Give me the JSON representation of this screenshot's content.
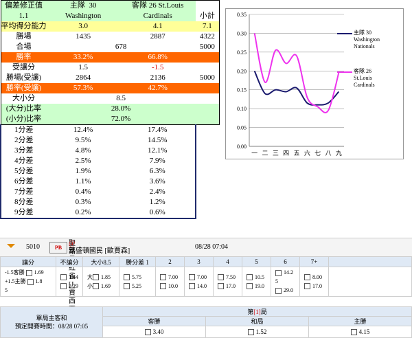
{
  "stats": {
    "header": {
      "title": "偏差修正值",
      "home_label": "主隊",
      "home_num": "30",
      "away_label": "客隊",
      "away_num": "26 St.Louis",
      "home_team": "Washington",
      "away_team": "Cardinals",
      "correction": "1.1",
      "subtotal_label": "小計"
    },
    "avg_ability": {
      "label": "平均得分能力",
      "home": "3.0",
      "away": "4.1",
      "total": "7.1"
    },
    "wins": {
      "label": "勝場",
      "home": "1435",
      "away": "2887",
      "total": "4322"
    },
    "games": {
      "label": "合場",
      "home": "678",
      "total": "5000"
    },
    "win_rate": {
      "label": "勝率",
      "home": "33.2%",
      "away": "66.8%"
    },
    "handicap": {
      "label": "受讓分",
      "home": "1.5",
      "away": "-1.5"
    },
    "wins_hc": {
      "label": "勝場(受讓)",
      "home": "2864",
      "away": "2136",
      "total": "5000"
    },
    "win_rate_hc": {
      "label": "勝率(受讓)",
      "home": "57.3%",
      "away": "42.7%"
    },
    "ou": {
      "label": "大小分",
      "value": "8.5"
    },
    "over_rate": {
      "label": "(大分)比率",
      "value": "28.0%"
    },
    "under_rate": {
      "label": "(小分)比率",
      "value": "72.0%"
    },
    "margins": [
      {
        "label": "1分差",
        "home": "12.4%",
        "away": "17.4%"
      },
      {
        "label": "2分差",
        "home": "9.5%",
        "away": "14.5%"
      },
      {
        "label": "3分差",
        "home": "4.8%",
        "away": "12.1%"
      },
      {
        "label": "4分差",
        "home": "2.5%",
        "away": "7.9%"
      },
      {
        "label": "5分差",
        "home": "1.9%",
        "away": "6.3%"
      },
      {
        "label": "6分差",
        "home": "1.1%",
        "away": "3.6%"
      },
      {
        "label": "7分差",
        "home": "0.4%",
        "away": "2.4%"
      },
      {
        "label": "8分差",
        "home": "0.3%",
        "away": "1.2%"
      },
      {
        "label": "9分差",
        "home": "0.2%",
        "away": "0.6%"
      }
    ]
  },
  "chart_data": {
    "type": "line",
    "categories": [
      "一",
      "二",
      "三",
      "四",
      "五",
      "六",
      "七",
      "八",
      "九"
    ],
    "ylim": [
      0,
      0.35
    ],
    "yticks": [
      "0.00",
      "0.05",
      "0.10",
      "0.15",
      "0.20",
      "0.25",
      "0.30",
      "0.35"
    ],
    "grid": true,
    "legend_position": "right",
    "series": [
      {
        "name_line1": "主隊  30",
        "name_line2": "Washington",
        "name_line3": "Nationals",
        "color": "#1a1a6e",
        "values": [
          0.2,
          0.14,
          0.15,
          0.145,
          0.155,
          0.115,
          0.11,
          0.115,
          0.145
        ]
      },
      {
        "name_line1": "客隊  26",
        "name_line2": "St.Louis",
        "name_line3": "Cardinals",
        "color": "#ee33ee",
        "values": [
          0.3,
          0.17,
          0.255,
          0.22,
          0.24,
          0.13,
          0.105,
          0.095,
          0.195
        ]
      }
    ]
  },
  "match": {
    "number": "5010",
    "logo_text": "PB",
    "home_line": "聖路易紅雀 [J.賈西亞]",
    "away_line": "華盛頓國民 [歐賈森]",
    "at_symbol": "@",
    "datetime": "08/28 07:04"
  },
  "bets": {
    "headers": [
      "讓分",
      "不讓分",
      "大小8.5",
      "勝分差 1",
      "2",
      "3",
      "4",
      "5",
      "6",
      "7+"
    ],
    "spread": [
      {
        "label": "-1.5客勝",
        "odds": "1.69"
      },
      {
        "label": "+1.5主勝",
        "odds": "1.8"
      },
      {
        "extra": "5"
      }
    ],
    "moneyline": [
      "1.44",
      "2.29"
    ],
    "totals": [
      {
        "label": "大",
        "odds": "1.85"
      },
      {
        "label": "小",
        "odds": "1.69"
      }
    ],
    "margin1": [
      "5.75",
      "5.25"
    ],
    "margin2": [
      "7.00",
      "10.0"
    ],
    "margin3": [
      "7.00",
      "14.0"
    ],
    "margin4": [
      "7.50",
      "17.0"
    ],
    "margin5": [
      "10.5",
      "19.0"
    ],
    "margin6": [
      "14.2",
      "5",
      "29.0"
    ],
    "margin7": [
      "8.00",
      "17.0"
    ]
  },
  "fullgame": {
    "label_line1": "單局主客和",
    "label_line2": "預定開賽時間：08/28 07:05",
    "inning_prefix": "第",
    "inning": "[1]",
    "inning_suffix": "局",
    "cols": [
      "客勝",
      "和局",
      "主勝"
    ],
    "odds": [
      "3.40",
      "1.52",
      "4.15"
    ]
  }
}
